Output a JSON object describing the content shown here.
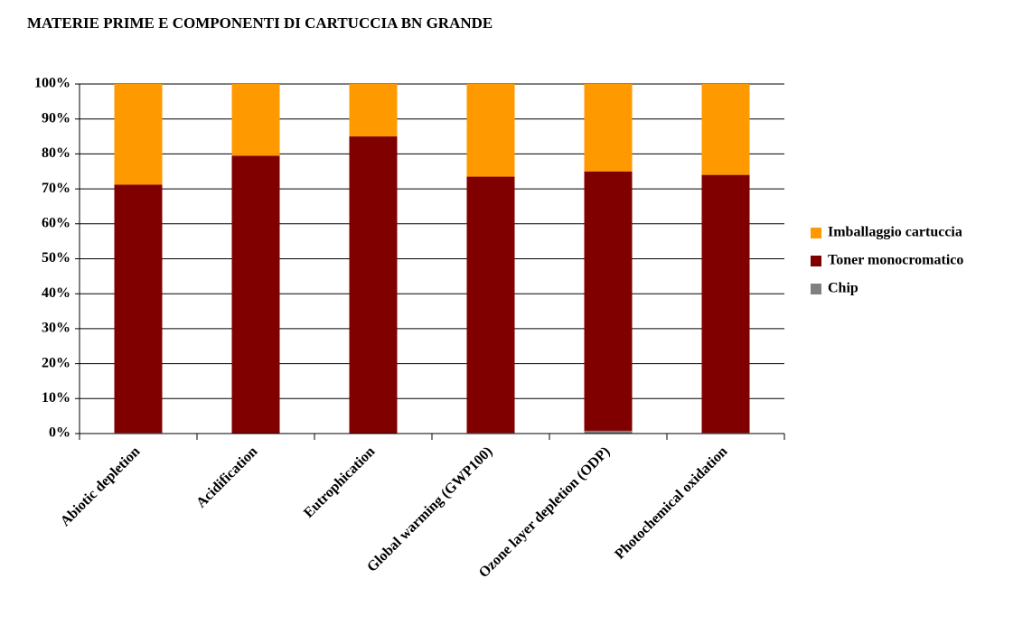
{
  "chart_data": {
    "type": "stacked_bar",
    "title": "MATERIE PRIME E COMPONENTI DI CARTUCCIA BN GRANDE",
    "categories": [
      "Abiotic depletion",
      "Acidification",
      "Eutrophication",
      "Global warming (GWP100)",
      "Ozone layer depletion (ODP)",
      "Photochemical oxidation"
    ],
    "series": [
      {
        "name": "Chip",
        "color": "#808080",
        "values": [
          0.2,
          0.1,
          0.1,
          0.2,
          0.8,
          0.2
        ]
      },
      {
        "name": "Toner monocromatico",
        "color": "#800000",
        "values": [
          71,
          79.4,
          84.9,
          73.3,
          74.2,
          73.8
        ]
      },
      {
        "name": "Imballaggio cartuccia",
        "color": "#FF9900",
        "values": [
          28.8,
          20.5,
          15,
          26.5,
          25,
          26
        ]
      }
    ],
    "ylim": [
      0,
      100
    ],
    "yticks": [
      {
        "value": 0,
        "label": "0%"
      },
      {
        "value": 10,
        "label": "10%"
      },
      {
        "value": 20,
        "label": "20%"
      },
      {
        "value": 30,
        "label": "30%"
      },
      {
        "value": 40,
        "label": "40%"
      },
      {
        "value": 50,
        "label": "50%"
      },
      {
        "value": 60,
        "label": "60%"
      },
      {
        "value": 70,
        "label": "70%"
      },
      {
        "value": 80,
        "label": "80%"
      },
      {
        "value": 90,
        "label": "90%"
      },
      {
        "value": 100,
        "label": "100%"
      }
    ],
    "grid": true,
    "legend": "right"
  }
}
